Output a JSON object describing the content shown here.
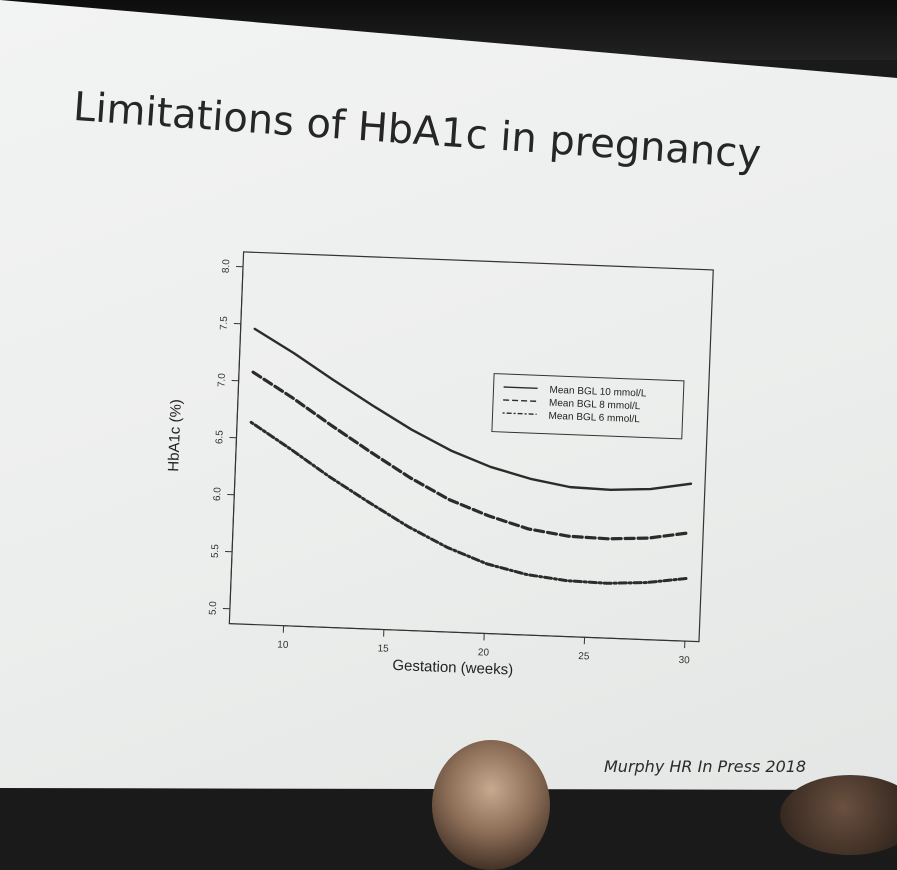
{
  "slide": {
    "title": "Limitations of HbA1c in pregnancy",
    "credit": "Murphy HR In Press 2018"
  },
  "chart_data": {
    "type": "line",
    "title": "",
    "xlabel": "Gestation (weeks)",
    "ylabel": "HbA1c (%)",
    "xlim": [
      8,
      30
    ],
    "ylim": [
      5.0,
      8.0
    ],
    "xticks": [
      10,
      15,
      20,
      25,
      30
    ],
    "xtick_labels": [
      "10",
      "15",
      "20",
      "25",
      "30"
    ],
    "yticks": [
      5.0,
      5.5,
      6.0,
      6.5,
      7.0,
      7.5,
      8.0
    ],
    "ytick_labels": [
      "5.0",
      "5.5",
      "6.0",
      "6.5",
      "7.0",
      "7.5",
      "8.0"
    ],
    "legend_position": "top-right",
    "grid": false,
    "x": [
      8,
      10,
      12,
      14,
      16,
      18,
      20,
      22,
      24,
      26,
      28,
      30
    ],
    "series": [
      {
        "name": "Mean BGL 10 mmol/L",
        "style": "solid",
        "values": [
          7.46,
          7.26,
          7.04,
          6.83,
          6.63,
          6.46,
          6.33,
          6.24,
          6.18,
          6.17,
          6.19,
          6.25
        ]
      },
      {
        "name": "Mean BGL 8 mmol/L",
        "style": "dashed",
        "values": [
          7.08,
          6.87,
          6.64,
          6.42,
          6.21,
          6.03,
          5.9,
          5.8,
          5.75,
          5.74,
          5.76,
          5.82
        ]
      },
      {
        "name": "Mean BGL 6 mmol/L",
        "style": "dotdash",
        "values": [
          6.64,
          6.42,
          6.19,
          5.98,
          5.78,
          5.61,
          5.48,
          5.4,
          5.36,
          5.35,
          5.37,
          5.42
        ]
      }
    ]
  }
}
